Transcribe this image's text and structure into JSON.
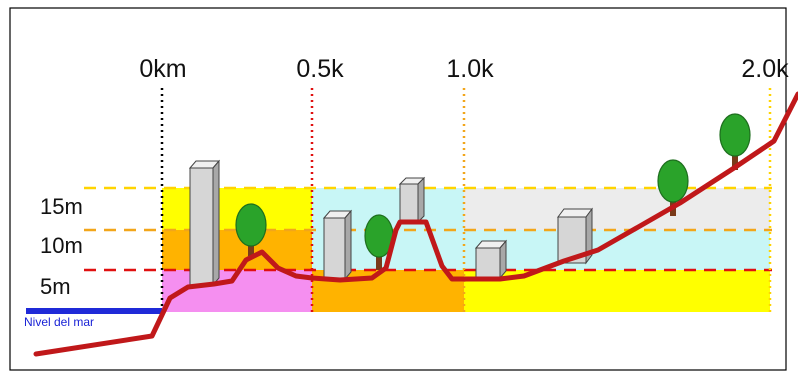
{
  "distance_labels": [
    "0km",
    "0.5k",
    "1.0k",
    "2.0k"
  ],
  "height_labels": [
    "15m",
    "10m",
    "5m"
  ],
  "sea_level_label": "Nivel del mar",
  "colors": {
    "terrain_line": "#c0181a",
    "sea_line": "#1f2ad8",
    "zone_0_5_low": "#f58ff0",
    "zone_0_5_mid": "#ffb300",
    "zone_0_5_high": "#ffff00",
    "zone_5_10_low": "#ffb300",
    "zone_5_10_high": "#c8f6f6",
    "zone_10_20_low": "#ffff00",
    "zone_10_20_mid": "#c8f6f6",
    "zone_10_20_high": "#ececec",
    "building_fill": "#d6d6d6",
    "tree_fill": "#2aa32a",
    "trunk_fill": "#7a3a1a"
  },
  "icons": [
    "building-icon",
    "tree-icon"
  ]
}
